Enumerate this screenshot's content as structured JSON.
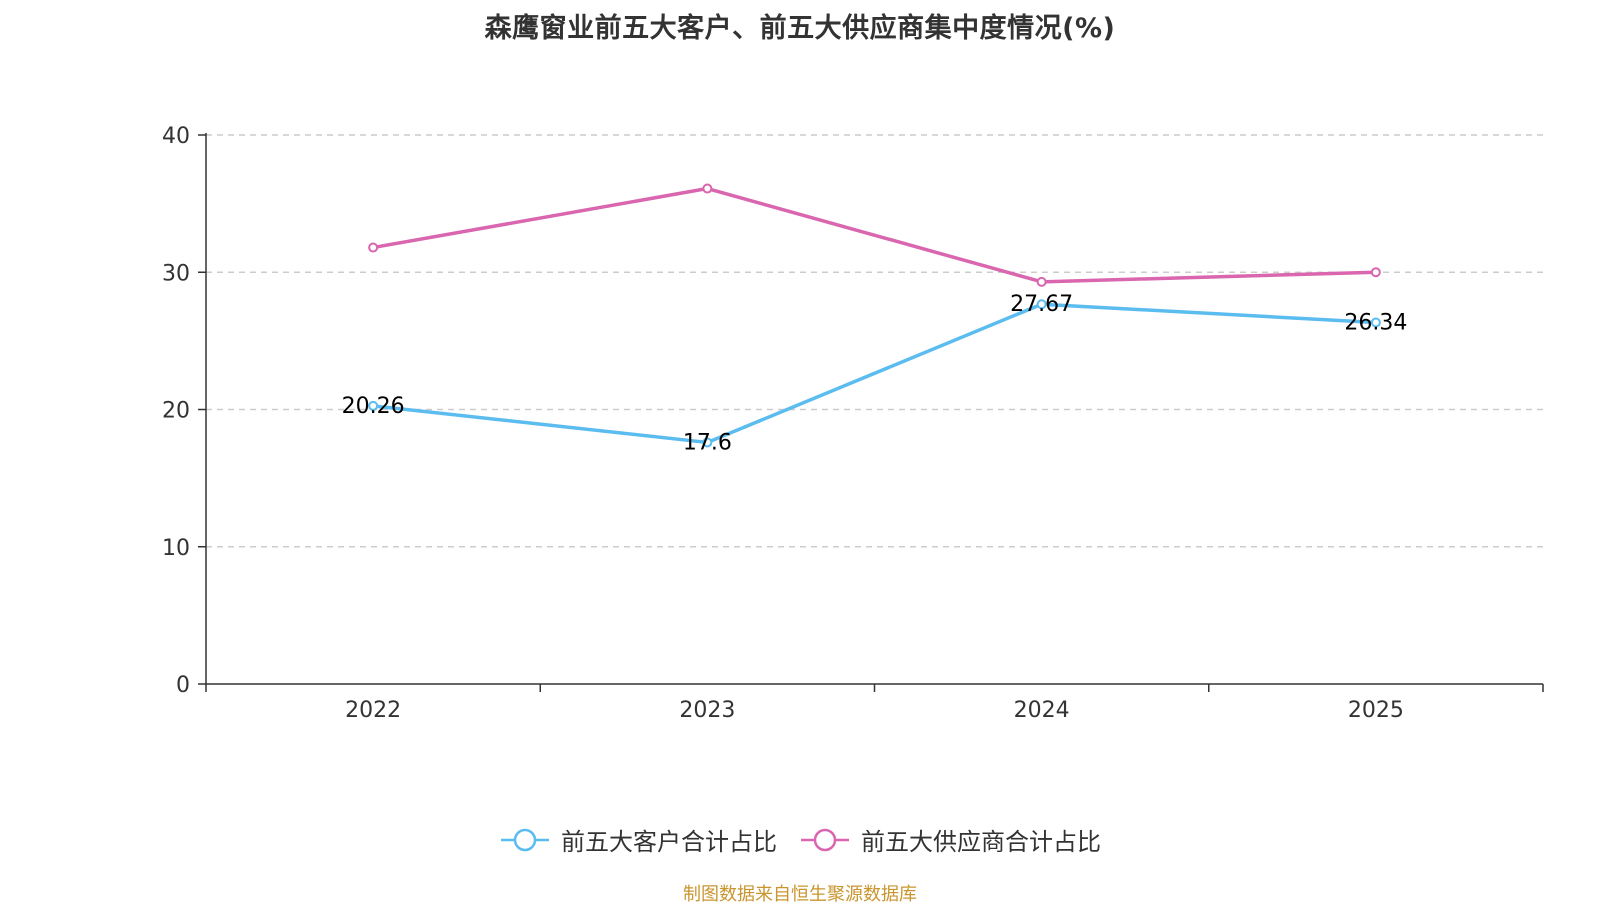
{
  "chart_data": {
    "type": "line",
    "title": "森鹰窗业前五大客户、前五大供应商集中度情况(%)",
    "categories": [
      "2022",
      "2023",
      "2024",
      "2025"
    ],
    "ylim": [
      0,
      40
    ],
    "yticks": [
      0,
      10,
      20,
      30,
      40
    ],
    "xlabel": "",
    "ylabel": "",
    "grid": "horizontal dashed",
    "legend_position": "bottom-center",
    "series": [
      {
        "name": "前五大客户合计占比",
        "color": "#5bbcf0",
        "values": [
          20.26,
          17.6,
          27.67,
          26.34
        ],
        "labels": [
          "20.26",
          "17.6",
          "27.67",
          "26.34"
        ]
      },
      {
        "name": "前五大供应商合计占比",
        "color": "#d966ae",
        "values": [
          31.8,
          36.1,
          29.3,
          30.0
        ]
      }
    ]
  },
  "source_note": "制图数据来自恒生聚源数据库"
}
